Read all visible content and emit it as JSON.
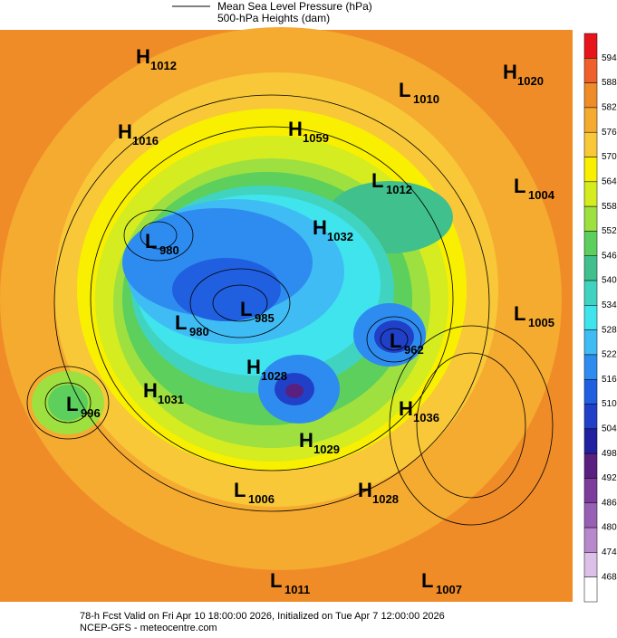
{
  "legend": {
    "line_label": "Mean Sea Level Pressure (hPa)",
    "fill_label": "500-hPa Heights (dam)"
  },
  "colorbar": {
    "ticks": [
      594,
      588,
      582,
      576,
      570,
      564,
      558,
      552,
      546,
      540,
      534,
      528,
      522,
      516,
      510,
      504,
      498,
      492,
      486,
      480,
      474,
      468
    ],
    "colors": [
      "#e8141c",
      "#f0602c",
      "#f08c28",
      "#f5aa30",
      "#f8c838",
      "#f8f000",
      "#d4ec20",
      "#9ee040",
      "#5ccf5c",
      "#40c08c",
      "#40d4c0",
      "#40e4ec",
      "#40bcf4",
      "#2e8cf0",
      "#2060e0",
      "#2040c8",
      "#2020a0",
      "#5a2080",
      "#7c3c9c",
      "#9860b4",
      "#b888cc",
      "#dcc0e8",
      "#ffffff"
    ]
  },
  "centers": [
    {
      "kind": "H",
      "value": 1012
    },
    {
      "kind": "H",
      "value": 1020
    },
    {
      "kind": "L",
      "value": 1010
    },
    {
      "kind": "H",
      "value": 1016
    },
    {
      "kind": "H",
      "value": 1059
    },
    {
      "kind": "L",
      "value": 1012
    },
    {
      "kind": "L",
      "value": 1004
    },
    {
      "kind": "H",
      "value": 1032
    },
    {
      "kind": "L",
      "value": 980
    },
    {
      "kind": "L",
      "value": 985
    },
    {
      "kind": "L",
      "value": 980
    },
    {
      "kind": "L",
      "value": 1005
    },
    {
      "kind": "L",
      "value": 962
    },
    {
      "kind": "H",
      "value": 1028
    },
    {
      "kind": "H",
      "value": 1031
    },
    {
      "kind": "L",
      "value": 996
    },
    {
      "kind": "H",
      "value": 1036
    },
    {
      "kind": "H",
      "value": 1029
    },
    {
      "kind": "L",
      "value": 1006
    },
    {
      "kind": "H",
      "value": 1028
    },
    {
      "kind": "L",
      "value": 1011
    },
    {
      "kind": "L",
      "value": 1007
    }
  ],
  "footer": {
    "line1": "78-h Fcst Valid on Fri Apr 10 18:00:00 2026, Initialized on Tue Apr  7 12:00:00 2026",
    "line2": "NCEP-GFS  - meteocentre.com"
  }
}
